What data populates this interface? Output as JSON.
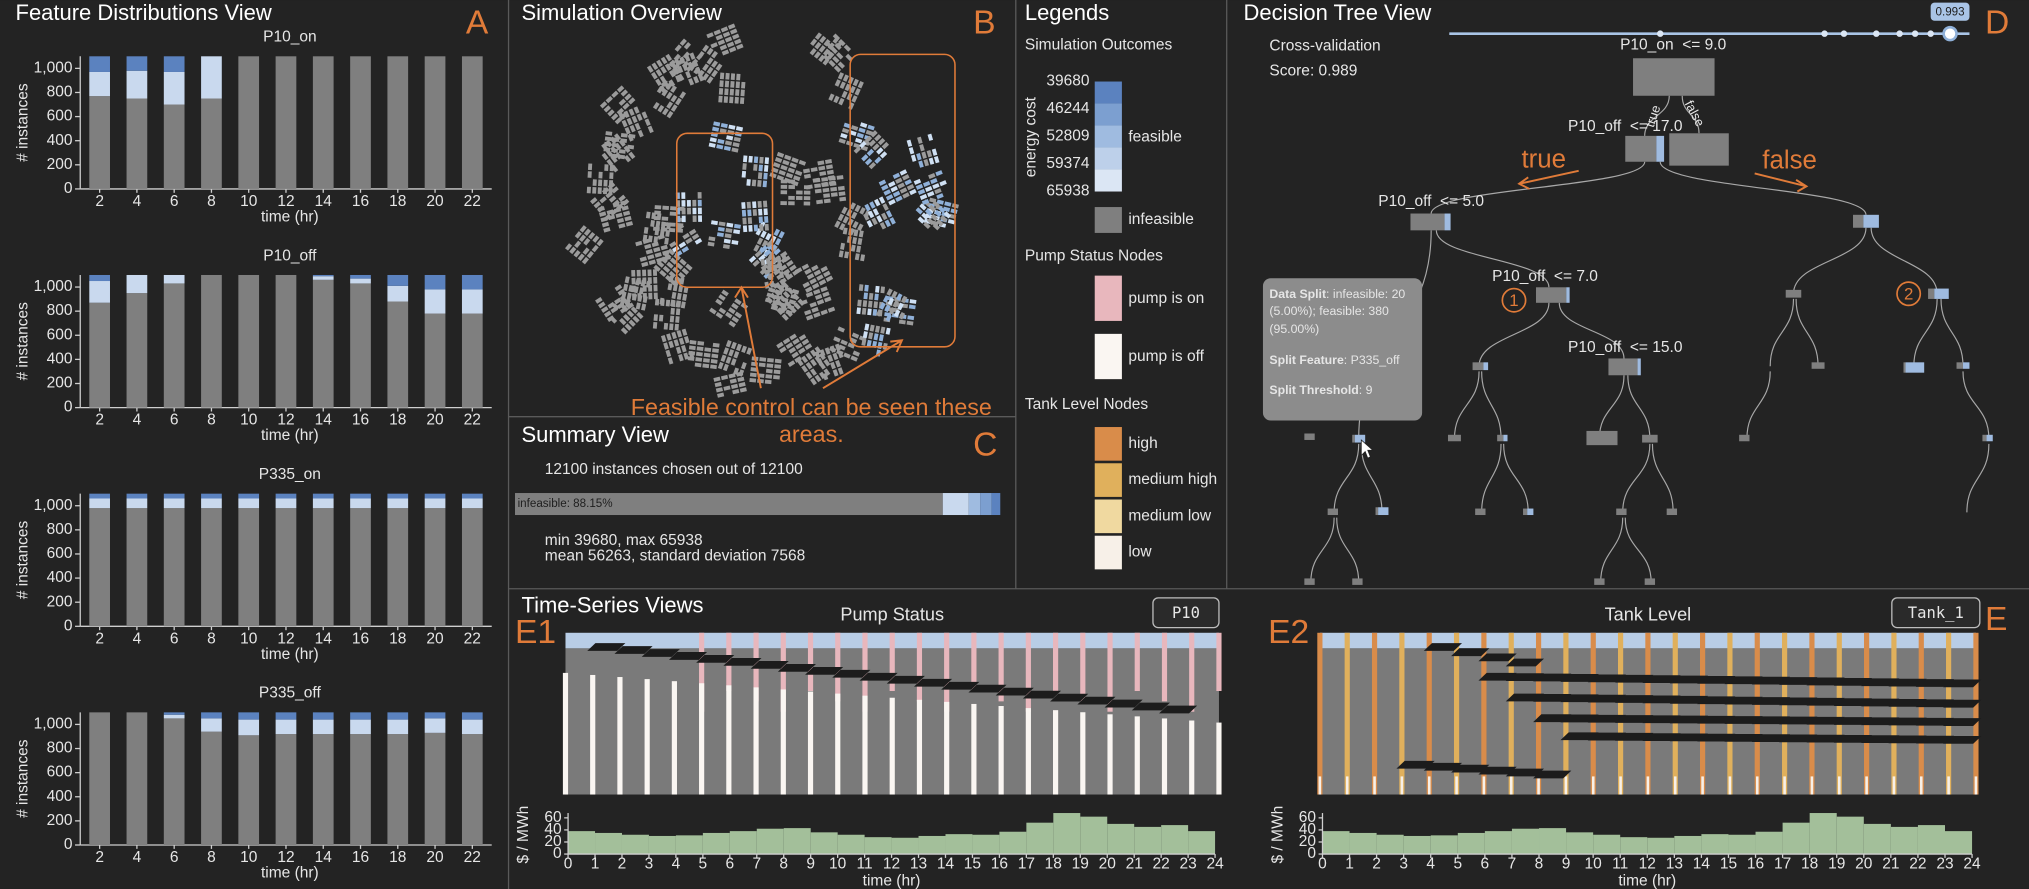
{
  "feature_view": {
    "title": "Feature Distributions View",
    "letter": "A",
    "charts": [
      {
        "type": "bar",
        "title": "P10_on",
        "categories": [
          2,
          4,
          6,
          8,
          10,
          12,
          14,
          16,
          18,
          20,
          22
        ],
        "series": [
          {
            "color": "#7f7f7f",
            "values": [
              770,
              750,
              700,
              750,
              1100,
              1100,
              1100,
              1100,
              1100,
              1100,
              1100
            ]
          },
          {
            "color": "#c9d9ee",
            "values": [
              200,
              230,
              270,
              350,
              0,
              0,
              0,
              0,
              0,
              0,
              0
            ]
          },
          {
            "color": "#5b82bf",
            "values": [
              130,
              120,
              130,
              0,
              0,
              0,
              0,
              0,
              0,
              0,
              0
            ]
          }
        ],
        "ylim": [
          0,
          1100
        ],
        "yticks": [
          0,
          200,
          400,
          600,
          800,
          {
            "value": 1000,
            "label": "1,000"
          }
        ],
        "ylabel": "# instances",
        "xlabel": "time (hr)"
      },
      {
        "type": "bar",
        "title": "P10_off",
        "categories": [
          2,
          4,
          6,
          8,
          10,
          12,
          14,
          16,
          18,
          20,
          22
        ],
        "series": [
          {
            "color": "#7f7f7f",
            "values": [
              870,
              950,
              1030,
              1100,
              1100,
              1100,
              1060,
              1030,
              880,
              780,
              780
            ]
          },
          {
            "color": "#c9d9ee",
            "values": [
              180,
              150,
              70,
              0,
              0,
              0,
              30,
              40,
              130,
              200,
              200
            ]
          },
          {
            "color": "#5b82bf",
            "values": [
              50,
              0,
              0,
              0,
              0,
              0,
              10,
              30,
              90,
              120,
              120
            ]
          }
        ],
        "ylim": [
          0,
          1100
        ],
        "yticks": [
          0,
          200,
          400,
          600,
          800,
          {
            "value": 1000,
            "label": "1,000"
          }
        ],
        "ylabel": "# instances",
        "xlabel": "time (hr)"
      },
      {
        "type": "bar",
        "title": "P335_on",
        "categories": [
          2,
          4,
          6,
          8,
          10,
          12,
          14,
          16,
          18,
          20,
          22
        ],
        "series": [
          {
            "color": "#7f7f7f",
            "values": [
              980,
              980,
              980,
              980,
              980,
              980,
              980,
              980,
              980,
              980,
              980
            ]
          },
          {
            "color": "#c9d9ee",
            "values": [
              80,
              80,
              80,
              80,
              80,
              80,
              80,
              80,
              80,
              80,
              80
            ]
          },
          {
            "color": "#5b82bf",
            "values": [
              40,
              40,
              40,
              40,
              40,
              40,
              40,
              40,
              40,
              40,
              40
            ]
          }
        ],
        "ylim": [
          0,
          1100
        ],
        "yticks": [
          0,
          200,
          400,
          600,
          800,
          {
            "value": 1000,
            "label": "1,000"
          }
        ],
        "ylabel": "# instances",
        "xlabel": "time (hr)"
      },
      {
        "type": "bar",
        "title": "P335_off",
        "categories": [
          2,
          4,
          6,
          8,
          10,
          12,
          14,
          16,
          18,
          20,
          22
        ],
        "series": [
          {
            "color": "#7f7f7f",
            "values": [
              1100,
              1100,
              1050,
              940,
              910,
              920,
              920,
              920,
              920,
              930,
              920
            ]
          },
          {
            "color": "#c9d9ee",
            "values": [
              0,
              0,
              30,
              110,
              130,
              120,
              120,
              120,
              120,
              120,
              120
            ]
          },
          {
            "color": "#5b82bf",
            "values": [
              0,
              0,
              20,
              50,
              60,
              60,
              60,
              60,
              60,
              50,
              60
            ]
          }
        ],
        "ylim": [
          0,
          1100
        ],
        "yticks": [
          0,
          200,
          400,
          600,
          800,
          {
            "value": 1000,
            "label": "1,000"
          }
        ],
        "ylabel": "# instances",
        "xlabel": "time (hr)"
      }
    ]
  },
  "simulation_overview": {
    "title": "Simulation Overview",
    "letter": "B",
    "annotation": [
      "Feasible control can be seen these",
      "areas."
    ]
  },
  "summary_view": {
    "title": "Summary View",
    "letter": "C",
    "selection": "12100 instances chosen out of 12100",
    "bar": {
      "label": "infeasible: 88.15%",
      "value": 88.15
    },
    "stats": [
      "min 39680, max 65938",
      "mean 56263, standard deviation 7568"
    ]
  },
  "legends": {
    "title": "Legends",
    "outcomes": {
      "title": "Simulation Outcomes",
      "axis_label": "energy cost",
      "ticks": [
        39680,
        46244,
        52809,
        59374,
        65938
      ],
      "feasible": "feasible",
      "infeasible": "infeasible"
    },
    "pump": {
      "title": "Pump Status Nodes",
      "items": [
        "pump is on",
        "pump is off"
      ]
    },
    "tank": {
      "title": "Tank Level Nodes",
      "items": [
        "high",
        "medium high",
        "medium low",
        "low"
      ]
    }
  },
  "decision_tree": {
    "title": "Decision Tree View",
    "letter": "D",
    "slider_value": 0.993,
    "cv": [
      "Cross-validation",
      "Score: 0.989"
    ],
    "nodes": [
      "P10_on  <= 9.0",
      "P10_off  <= 17.0",
      "P10_off  <= 5.0",
      "P10_off  <= 7.0",
      "P10_off  <= 15.0"
    ],
    "edge_labels": [
      "true",
      "false"
    ],
    "directions": [
      "true",
      "false"
    ],
    "markers": [
      "1",
      "2"
    ],
    "tooltip": [
      {
        "bold": "Data Split",
        "text": ": infeasible: 20"
      },
      {
        "text": "(5.00%); feasible: 380"
      },
      {
        "text": "(95.00%)"
      },
      {
        "bold": "Split Feature",
        "text": ": P335_off"
      },
      {
        "bold": "Split Threshold",
        "text": ": 9"
      }
    ]
  },
  "time_series": {
    "title": "Time-Series Views",
    "letter": "E",
    "pump": {
      "letter": "E1",
      "title": "Pump Status",
      "selector": "P10"
    },
    "tank": {
      "letter": "E2",
      "title": "Tank Level",
      "selector": "Tank_1"
    },
    "price": {
      "type": "bar",
      "ylabel": "$ / MWh",
      "xlabel": "time (hr)",
      "color": "#a3bf9a",
      "xlim": [
        0,
        24
      ],
      "xticks": [
        0,
        1,
        2,
        3,
        4,
        5,
        6,
        7,
        8,
        9,
        10,
        11,
        12,
        13,
        14,
        15,
        16,
        17,
        18,
        19,
        20,
        21,
        22,
        23,
        24
      ],
      "ylim": [
        0,
        68
      ],
      "yticks": [
        0,
        20,
        40,
        60
      ],
      "values": [
        38,
        35,
        32,
        30,
        31,
        35,
        38,
        42,
        43,
        36,
        32,
        28,
        27,
        30,
        33,
        32,
        37,
        52,
        68,
        62,
        50,
        45,
        48,
        38
      ]
    }
  }
}
